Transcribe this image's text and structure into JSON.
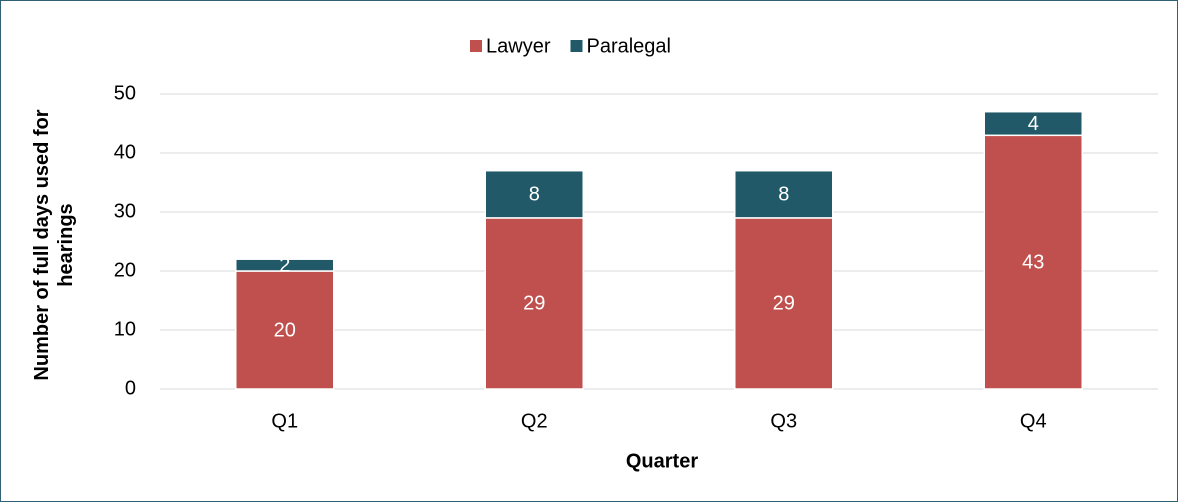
{
  "chart_data": {
    "type": "stacked_bar",
    "xlabel": "Quarter",
    "ylabel": "Number of full days used for hearings",
    "categories": [
      "Q1",
      "Q2",
      "Q3",
      "Q4"
    ],
    "series": [
      {
        "name": "Lawyer",
        "color": "#c0504d",
        "values": [
          20,
          29,
          29,
          43
        ]
      },
      {
        "name": "Paralegal",
        "color": "#215968",
        "values": [
          2,
          8,
          8,
          4
        ]
      }
    ],
    "ylim": [
      0,
      50
    ],
    "yticks": [
      0,
      10,
      20,
      30,
      40,
      50
    ],
    "grid": true,
    "legend": "top"
  }
}
